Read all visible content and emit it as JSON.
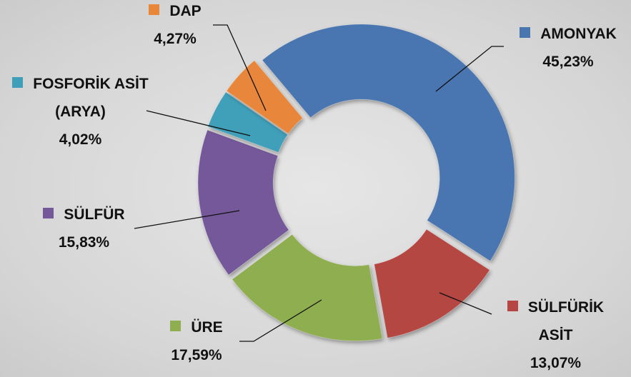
{
  "chart_data": {
    "type": "donut",
    "categories": [
      "AMONYAK",
      "SÜLFÜRİK ASİT",
      "ÜRE",
      "SÜLFÜR",
      "FOSFORİK ASİT (ARYA)",
      "DAP"
    ],
    "values": [
      45.23,
      13.07,
      17.59,
      15.83,
      4.02,
      4.27
    ],
    "value_labels": [
      "45,23%",
      "13,07%",
      "17,59%",
      "15,83%",
      "4,02%",
      "4,27%"
    ],
    "colors": [
      "#4a76b0",
      "#b54643",
      "#8eae4f",
      "#74589a",
      "#3f9fb9",
      "#e8873a"
    ]
  }
}
